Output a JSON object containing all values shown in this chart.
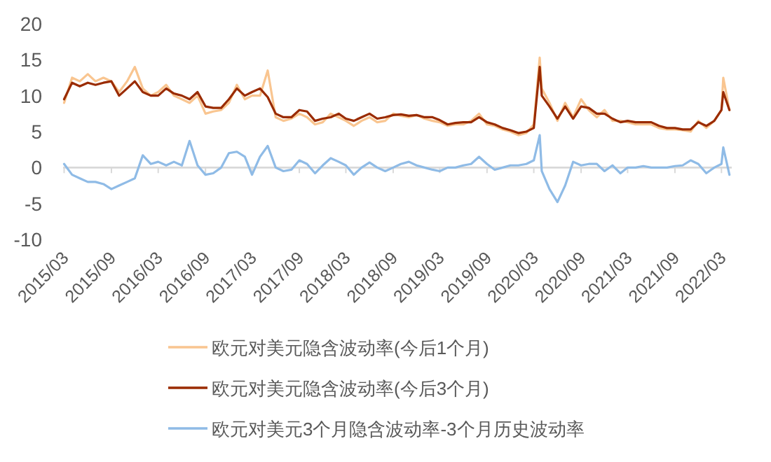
{
  "chart_data": {
    "type": "line",
    "x": [
      "2015-03",
      "2015-04",
      "2015-05",
      "2015-06",
      "2015-07",
      "2015-08",
      "2015-09",
      "2015-10",
      "2015-11",
      "2015-12",
      "2016-01",
      "2016-02",
      "2016-03",
      "2016-04",
      "2016-05",
      "2016-06",
      "2016-07",
      "2016-08",
      "2016-09",
      "2016-10",
      "2016-11",
      "2016-12",
      "2017-01",
      "2017-02",
      "2017-03",
      "2017-04",
      "2017-05",
      "2017-06",
      "2017-07",
      "2017-08",
      "2017-09",
      "2017-10",
      "2017-11",
      "2017-12",
      "2018-01",
      "2018-02",
      "2018-03",
      "2018-04",
      "2018-05",
      "2018-06",
      "2018-07",
      "2018-08",
      "2018-09",
      "2018-10",
      "2018-11",
      "2018-12",
      "2019-01",
      "2019-02",
      "2019-03",
      "2019-04",
      "2019-05",
      "2019-06",
      "2019-07",
      "2019-08",
      "2019-09",
      "2019-10",
      "2019-11",
      "2019-12",
      "2020-01",
      "2020-02",
      "2020-03",
      "2020-03-24",
      "2020-04",
      "2020-05",
      "2020-06",
      "2020-07",
      "2020-08",
      "2020-09",
      "2020-10",
      "2020-11",
      "2020-12",
      "2021-01",
      "2021-02",
      "2021-03",
      "2021-04",
      "2021-05",
      "2021-06",
      "2021-07",
      "2021-08",
      "2021-09",
      "2021-10",
      "2021-11",
      "2021-12",
      "2022-01",
      "2022-02",
      "2022-03",
      "2022-03-08",
      "2022-04"
    ],
    "series": [
      {
        "name": "欧元对美元隐含波动率(今后1个月)",
        "color": "#f9c590",
        "values": [
          9,
          12.5,
          12,
          13,
          12,
          12.5,
          12,
          10.5,
          12,
          14,
          11,
          10,
          10.5,
          11.5,
          10,
          9.5,
          9,
          10,
          7.5,
          7.8,
          8,
          9,
          11.5,
          9.5,
          10,
          10,
          13.5,
          7,
          6.5,
          6.8,
          7.5,
          7,
          6,
          6.3,
          7.5,
          7,
          6.5,
          5.8,
          6.5,
          7,
          6.3,
          6.5,
          7.5,
          7.2,
          7,
          7.3,
          6.8,
          6.5,
          6.3,
          5.8,
          6,
          6,
          6.5,
          7.5,
          6,
          5.8,
          5.3,
          5,
          4.5,
          4.8,
          6,
          15.3,
          11,
          9,
          6.5,
          9,
          7,
          9.5,
          8,
          7,
          8,
          6.5,
          6.5,
          6.3,
          6,
          6,
          6,
          5.5,
          5.3,
          5.3,
          5.2,
          5,
          6.5,
          5.5,
          6.5,
          8,
          12.5,
          8
        ]
      },
      {
        "name": "欧元对美元隐含波动率(今后3个月)",
        "color": "#9a2b00",
        "values": [
          9.5,
          11.8,
          11.3,
          11.8,
          11.5,
          11.8,
          12,
          10,
          11,
          12,
          10.5,
          10,
          10,
          11,
          10.3,
          10,
          9.5,
          10.5,
          8.5,
          8.3,
          8.3,
          9.5,
          11,
          10,
          10.5,
          11,
          9.8,
          7.5,
          7,
          7,
          8,
          7.8,
          6.5,
          6.8,
          7,
          7.5,
          6.8,
          6.5,
          7,
          7.5,
          6.8,
          7,
          7.3,
          7.4,
          7.2,
          7.3,
          7,
          7,
          6.6,
          6,
          6.2,
          6.3,
          6.3,
          7,
          6.3,
          6,
          5.5,
          5.2,
          4.8,
          5,
          5.5,
          14,
          10,
          8.5,
          6.8,
          8.5,
          6.8,
          8.5,
          8.3,
          7.5,
          7.5,
          6.8,
          6.3,
          6.5,
          6.3,
          6.3,
          6.3,
          5.8,
          5.5,
          5.5,
          5.3,
          5.3,
          6.3,
          5.8,
          6.5,
          8,
          10.5,
          8
        ]
      },
      {
        "name": "欧元对美元3个月隐含波动率-3个月历史波动率",
        "color": "#8fbbe6",
        "values": [
          0.5,
          -1,
          -1.5,
          -2,
          -2,
          -2.3,
          -3,
          -2.5,
          -2,
          -1.5,
          1.7,
          0.5,
          0.8,
          0.3,
          0.8,
          0.3,
          3.7,
          0.3,
          -1,
          -0.8,
          0,
          2,
          2.2,
          1.5,
          -1,
          1.5,
          3,
          0,
          -0.5,
          -0.3,
          1,
          0.5,
          -0.8,
          0.3,
          1.3,
          0.8,
          0.3,
          -1,
          0,
          0.7,
          0,
          -0.5,
          0,
          0.5,
          0.8,
          0.3,
          0,
          -0.3,
          -0.5,
          0,
          0,
          0.3,
          0.5,
          1.5,
          0.5,
          -0.3,
          0,
          0.3,
          0.3,
          0.5,
          1,
          4.5,
          -0.5,
          -3,
          -4.8,
          -2.5,
          0.8,
          0.3,
          0.5,
          0.5,
          -0.5,
          0.3,
          -0.8,
          0,
          0,
          0.2,
          0,
          0,
          0,
          0.2,
          0.3,
          1,
          0.5,
          -0.8,
          0,
          0.5,
          2.8,
          -1
        ]
      }
    ],
    "xlim": [
      "2015-02-25",
      "2022-04-10"
    ],
    "xticks": [
      {
        "value": "2015-03",
        "label": "2015/03"
      },
      {
        "value": "2015-09",
        "label": "2015/09"
      },
      {
        "value": "2016-03",
        "label": "2016/03"
      },
      {
        "value": "2016-09",
        "label": "2016/09"
      },
      {
        "value": "2017-03",
        "label": "2017/03"
      },
      {
        "value": "2017-09",
        "label": "2017/09"
      },
      {
        "value": "2018-03",
        "label": "2018/03"
      },
      {
        "value": "2018-09",
        "label": "2018/09"
      },
      {
        "value": "2019-03",
        "label": "2019/03"
      },
      {
        "value": "2019-09",
        "label": "2019/09"
      },
      {
        "value": "2020-03",
        "label": "2020/03"
      },
      {
        "value": "2020-09",
        "label": "2020/09"
      },
      {
        "value": "2021-03",
        "label": "2021/03"
      },
      {
        "value": "2021-09",
        "label": "2021/09"
      },
      {
        "value": "2022-03",
        "label": "2022/03"
      }
    ],
    "ylim": [
      -10,
      20
    ],
    "yticks": [
      -10,
      -5,
      0,
      5,
      10,
      15,
      20
    ],
    "legend": "bottom"
  }
}
